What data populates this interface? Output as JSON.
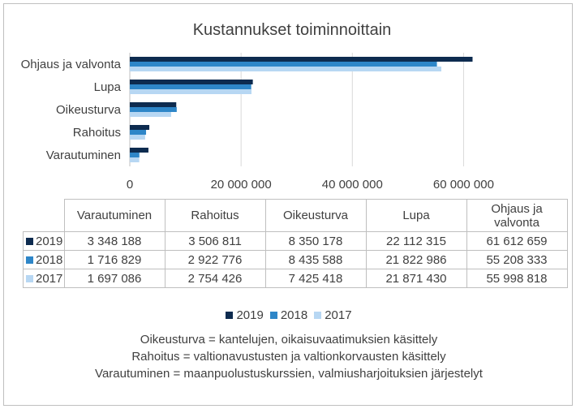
{
  "chart_data": {
    "type": "bar",
    "orientation": "horizontal",
    "title": "Kustannukset toiminnoittain",
    "categories": [
      "Varautuminen",
      "Rahoitus",
      "Oikeusturva",
      "Lupa",
      "Ohjaus ja valvonta"
    ],
    "category_order_top_to_bottom": [
      "Ohjaus ja valvonta",
      "Lupa",
      "Oikeusturva",
      "Rahoitus",
      "Varautuminen"
    ],
    "series": [
      {
        "name": "2019",
        "color": "#0d2b4f",
        "values": [
          3348188,
          3506811,
          8350178,
          22112315,
          61612659
        ],
        "labels": [
          "3 348 188",
          "3 506 811",
          "8 350 178",
          "22 112 315",
          "61 612 659"
        ]
      },
      {
        "name": "2018",
        "color": "#2e86c8",
        "values": [
          1716829,
          2922776,
          8435588,
          21822986,
          55208333
        ],
        "labels": [
          "1 716 829",
          "2 922 776",
          "8 435 588",
          "21 822 986",
          "55 208 333"
        ]
      },
      {
        "name": "2017",
        "color": "#b7d7f3",
        "values": [
          1697086,
          2754426,
          7425418,
          21871430,
          55998818
        ],
        "labels": [
          "1 697 086",
          "2 754 426",
          "7 425 418",
          "21 871 430",
          "55 998 818"
        ]
      }
    ],
    "xlim": [
      0,
      70000000
    ],
    "xticks": [
      0,
      20000000,
      40000000,
      60000000
    ],
    "xtick_labels": [
      "0",
      "20 000 000",
      "40 000 000",
      "60 000 000"
    ],
    "grid": true,
    "legend": "bottom",
    "data_table": true
  },
  "table_header_labels": [
    "Varautuminen",
    "Rahoitus",
    "Oikeusturva",
    "Lupa",
    "Ohjaus ja valvonta"
  ],
  "notes": [
    "Oikeusturva = kantelujen, oikaisuvaatimuksien käsittely",
    "Rahoitus = valtionavustusten ja valtionkorvausten käsittely",
    "Varautuminen = maanpuolustuskurssien, valmiusharjoituksien järjestelyt"
  ]
}
